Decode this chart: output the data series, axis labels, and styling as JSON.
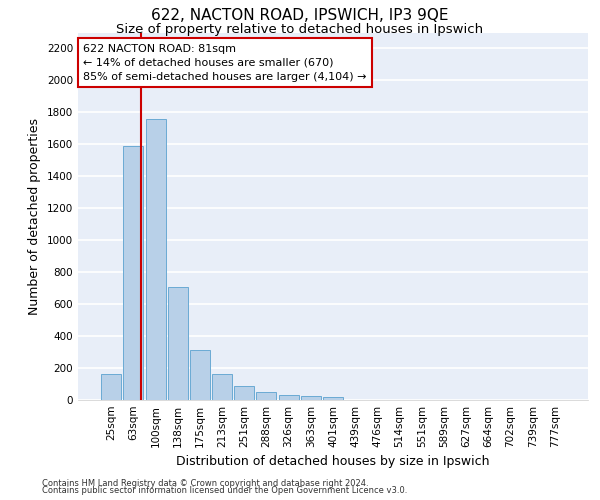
{
  "title": "622, NACTON ROAD, IPSWICH, IP3 9QE",
  "subtitle": "Size of property relative to detached houses in Ipswich",
  "xlabel": "Distribution of detached houses by size in Ipswich",
  "ylabel": "Number of detached properties",
  "categories": [
    "25sqm",
    "63sqm",
    "100sqm",
    "138sqm",
    "175sqm",
    "213sqm",
    "251sqm",
    "288sqm",
    "326sqm",
    "363sqm",
    "401sqm",
    "439sqm",
    "476sqm",
    "514sqm",
    "551sqm",
    "589sqm",
    "627sqm",
    "664sqm",
    "702sqm",
    "739sqm",
    "777sqm"
  ],
  "values": [
    160,
    1590,
    1760,
    710,
    315,
    160,
    85,
    52,
    30,
    22,
    20,
    0,
    0,
    0,
    0,
    0,
    0,
    0,
    0,
    0,
    0
  ],
  "bar_color": "#b8d0e8",
  "bar_edgecolor": "#6aaad4",
  "vline_x": 1.35,
  "vline_color": "#cc0000",
  "annotation_text": "622 NACTON ROAD: 81sqm\n← 14% of detached houses are smaller (670)\n85% of semi-detached houses are larger (4,104) →",
  "annotation_box_color": "white",
  "annotation_box_edgecolor": "#cc0000",
  "ylim": [
    0,
    2300
  ],
  "yticks": [
    0,
    200,
    400,
    600,
    800,
    1000,
    1200,
    1400,
    1600,
    1800,
    2000,
    2200
  ],
  "footnote1": "Contains HM Land Registry data © Crown copyright and database right 2024.",
  "footnote2": "Contains public sector information licensed under the Open Government Licence v3.0.",
  "plot_bg_color": "#e8eef8",
  "grid_color": "white",
  "title_fontsize": 11,
  "subtitle_fontsize": 9.5,
  "axis_label_fontsize": 9,
  "tick_fontsize": 7.5,
  "footnote_fontsize": 6
}
